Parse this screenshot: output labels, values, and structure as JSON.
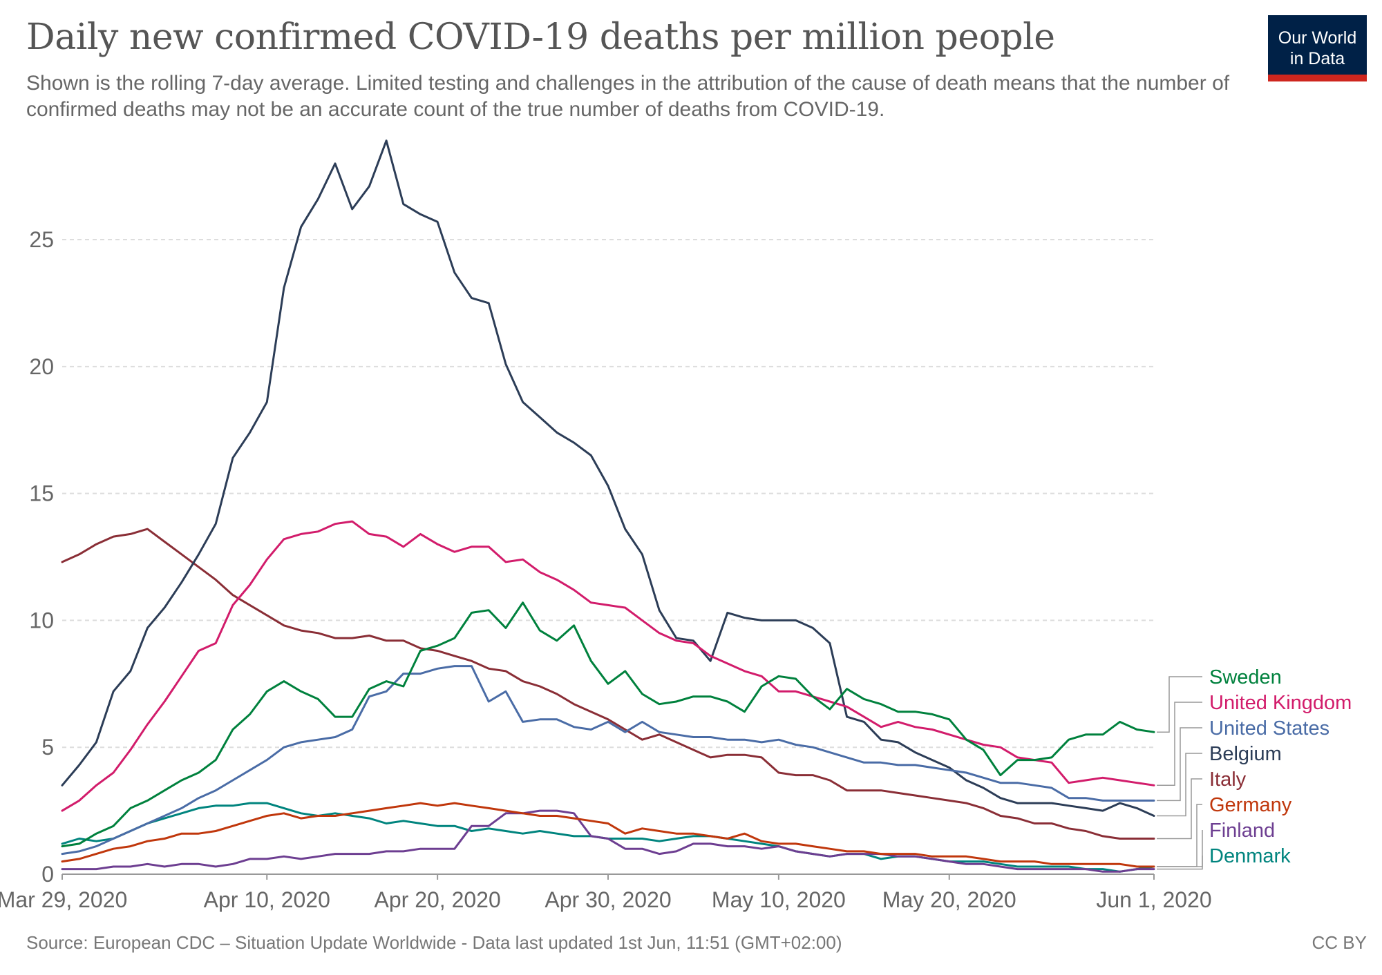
{
  "header": {
    "title": "Daily new confirmed COVID-19 deaths per million people",
    "subtitle": "Shown is the rolling 7-day average. Limited testing and challenges in the attribution of the cause of death means that the number of confirmed deaths may not be an accurate count of the true number of deaths from COVID-19.",
    "logo_line1": "Our World",
    "logo_line2": "in Data"
  },
  "footer": {
    "source": "Source: European CDC – Situation Update Worldwide - Data last updated 1st Jun, 11:51 (GMT+02:00)",
    "license": "CC BY"
  },
  "chart_data": {
    "type": "line",
    "x_start": "2020-03-29",
    "x_end": "2020-06-01",
    "ylim": [
      0,
      29
    ],
    "yticks": [
      0,
      5,
      10,
      15,
      20,
      25
    ],
    "xticks": [
      {
        "date": "2020-03-29",
        "label": "Mar 29, 2020"
      },
      {
        "date": "2020-04-10",
        "label": "Apr 10, 2020"
      },
      {
        "date": "2020-04-20",
        "label": "Apr 20, 2020"
      },
      {
        "date": "2020-04-30",
        "label": "Apr 30, 2020"
      },
      {
        "date": "2020-05-10",
        "label": "May 10, 2020"
      },
      {
        "date": "2020-05-20",
        "label": "May 20, 2020"
      },
      {
        "date": "2020-06-01",
        "label": "Jun 1, 2020"
      }
    ],
    "grid": "horizontal dashed",
    "legend": "right, end-of-line labels",
    "series": [
      {
        "name": "Sweden",
        "color": "#00813d",
        "values": [
          1.1,
          1.2,
          1.6,
          1.9,
          2.6,
          2.9,
          3.3,
          3.7,
          4.0,
          4.5,
          5.7,
          6.3,
          7.2,
          7.6,
          7.2,
          6.9,
          6.2,
          6.2,
          7.3,
          7.6,
          7.4,
          8.8,
          9.0,
          9.3,
          10.3,
          10.4,
          9.7,
          10.7,
          9.6,
          9.2,
          9.8,
          8.4,
          7.5,
          8.0,
          7.1,
          6.7,
          6.8,
          7.0,
          7.0,
          6.8,
          6.4,
          7.4,
          7.8,
          7.7,
          7.0,
          6.5,
          7.3,
          6.9,
          6.7,
          6.4,
          6.4,
          6.3,
          6.1,
          5.3,
          4.9,
          3.9,
          4.5,
          4.5,
          4.6,
          5.3,
          5.5,
          5.5,
          6.0,
          5.7,
          5.6
        ]
      },
      {
        "name": "United Kingdom",
        "color": "#d21c6b",
        "values": [
          2.5,
          2.9,
          3.5,
          4.0,
          4.9,
          5.9,
          6.8,
          7.8,
          8.8,
          9.1,
          10.6,
          11.4,
          12.4,
          13.2,
          13.4,
          13.5,
          13.8,
          13.9,
          13.4,
          13.3,
          12.9,
          13.4,
          13.0,
          12.7,
          12.9,
          12.9,
          12.3,
          12.4,
          11.9,
          11.6,
          11.2,
          10.7,
          10.6,
          10.5,
          10.0,
          9.5,
          9.2,
          9.1,
          8.6,
          8.3,
          8.0,
          7.8,
          7.2,
          7.2,
          7.0,
          6.8,
          6.6,
          6.2,
          5.8,
          6.0,
          5.8,
          5.7,
          5.5,
          5.3,
          5.1,
          5.0,
          4.6,
          4.5,
          4.4,
          3.6,
          3.7,
          3.8,
          3.7,
          3.6,
          3.5
        ]
      },
      {
        "name": "United States",
        "color": "#4a6ca6",
        "values": [
          0.8,
          0.9,
          1.1,
          1.4,
          1.7,
          2.0,
          2.3,
          2.6,
          3.0,
          3.3,
          3.7,
          4.1,
          4.5,
          5.0,
          5.2,
          5.3,
          5.4,
          5.7,
          7.0,
          7.2,
          7.9,
          7.9,
          8.1,
          8.2,
          8.2,
          6.8,
          7.2,
          6.0,
          6.1,
          6.1,
          5.8,
          5.7,
          6.0,
          5.6,
          6.0,
          5.6,
          5.5,
          5.4,
          5.4,
          5.3,
          5.3,
          5.2,
          5.3,
          5.1,
          5.0,
          4.8,
          4.6,
          4.4,
          4.4,
          4.3,
          4.3,
          4.2,
          4.1,
          4.0,
          3.8,
          3.6,
          3.6,
          3.5,
          3.4,
          3.0,
          3.0,
          2.9,
          2.9,
          2.9,
          2.9
        ]
      },
      {
        "name": "Belgium",
        "color": "#2c3d57",
        "values": [
          3.5,
          4.3,
          5.2,
          7.2,
          8.0,
          9.7,
          10.5,
          11.5,
          12.6,
          13.8,
          16.4,
          17.4,
          18.6,
          23.1,
          25.5,
          26.6,
          28.0,
          26.2,
          27.1,
          28.9,
          26.4,
          26.0,
          25.7,
          23.7,
          22.7,
          22.5,
          20.1,
          18.6,
          18.0,
          17.4,
          17.0,
          16.5,
          15.3,
          13.6,
          12.6,
          10.4,
          9.3,
          9.2,
          8.4,
          10.3,
          10.1,
          10.0,
          10.0,
          10.0,
          9.7,
          9.1,
          6.2,
          6.0,
          5.3,
          5.2,
          4.8,
          4.5,
          4.2,
          3.7,
          3.4,
          3.0,
          2.8,
          2.8,
          2.8,
          2.7,
          2.6,
          2.5,
          2.8,
          2.6,
          2.3
        ]
      },
      {
        "name": "Italy",
        "color": "#8a2e36",
        "values": [
          12.3,
          12.6,
          13.0,
          13.3,
          13.4,
          13.6,
          13.1,
          12.6,
          12.1,
          11.6,
          11.0,
          10.6,
          10.2,
          9.8,
          9.6,
          9.5,
          9.3,
          9.3,
          9.4,
          9.2,
          9.2,
          8.9,
          8.8,
          8.6,
          8.4,
          8.1,
          8.0,
          7.6,
          7.4,
          7.1,
          6.7,
          6.4,
          6.1,
          5.7,
          5.3,
          5.5,
          5.2,
          4.9,
          4.6,
          4.7,
          4.7,
          4.6,
          4.0,
          3.9,
          3.9,
          3.7,
          3.3,
          3.3,
          3.3,
          3.2,
          3.1,
          3.0,
          2.9,
          2.8,
          2.6,
          2.3,
          2.2,
          2.0,
          2.0,
          1.8,
          1.7,
          1.5,
          1.4,
          1.4,
          1.4
        ]
      },
      {
        "name": "Germany",
        "color": "#c0370c",
        "values": [
          0.5,
          0.6,
          0.8,
          1.0,
          1.1,
          1.3,
          1.4,
          1.6,
          1.6,
          1.7,
          1.9,
          2.1,
          2.3,
          2.4,
          2.2,
          2.3,
          2.3,
          2.4,
          2.5,
          2.6,
          2.7,
          2.8,
          2.7,
          2.8,
          2.7,
          2.6,
          2.5,
          2.4,
          2.3,
          2.3,
          2.2,
          2.1,
          2.0,
          1.6,
          1.8,
          1.7,
          1.6,
          1.6,
          1.5,
          1.4,
          1.6,
          1.3,
          1.2,
          1.2,
          1.1,
          1.0,
          0.9,
          0.9,
          0.8,
          0.8,
          0.8,
          0.7,
          0.7,
          0.7,
          0.6,
          0.5,
          0.5,
          0.5,
          0.4,
          0.4,
          0.4,
          0.4,
          0.4,
          0.3,
          0.3
        ]
      },
      {
        "name": "Finland",
        "color": "#6d3e91",
        "values": [
          0.2,
          0.2,
          0.2,
          0.3,
          0.3,
          0.4,
          0.3,
          0.4,
          0.4,
          0.3,
          0.4,
          0.6,
          0.6,
          0.7,
          0.6,
          0.7,
          0.8,
          0.8,
          0.8,
          0.9,
          0.9,
          1.0,
          1.0,
          1.0,
          1.9,
          1.9,
          2.4,
          2.4,
          2.5,
          2.5,
          2.4,
          1.5,
          1.4,
          1.0,
          1.0,
          0.8,
          0.9,
          1.2,
          1.2,
          1.1,
          1.1,
          1.0,
          1.1,
          0.9,
          0.8,
          0.7,
          0.8,
          0.8,
          0.8,
          0.7,
          0.7,
          0.6,
          0.5,
          0.4,
          0.4,
          0.3,
          0.2,
          0.2,
          0.2,
          0.2,
          0.2,
          0.1,
          0.1,
          0.2,
          0.2
        ]
      },
      {
        "name": "Denmark",
        "color": "#00847e",
        "values": [
          1.2,
          1.4,
          1.3,
          1.4,
          1.7,
          2.0,
          2.2,
          2.4,
          2.6,
          2.7,
          2.7,
          2.8,
          2.8,
          2.6,
          2.4,
          2.3,
          2.4,
          2.3,
          2.2,
          2.0,
          2.1,
          2.0,
          1.9,
          1.9,
          1.7,
          1.8,
          1.7,
          1.6,
          1.7,
          1.6,
          1.5,
          1.5,
          1.4,
          1.4,
          1.4,
          1.3,
          1.4,
          1.5,
          1.5,
          1.4,
          1.3,
          1.2,
          1.1,
          0.9,
          0.8,
          0.7,
          0.8,
          0.8,
          0.6,
          0.7,
          0.7,
          0.6,
          0.5,
          0.5,
          0.5,
          0.4,
          0.3,
          0.3,
          0.3,
          0.3,
          0.2,
          0.2,
          0.1,
          0.2,
          0.3
        ]
      }
    ]
  }
}
